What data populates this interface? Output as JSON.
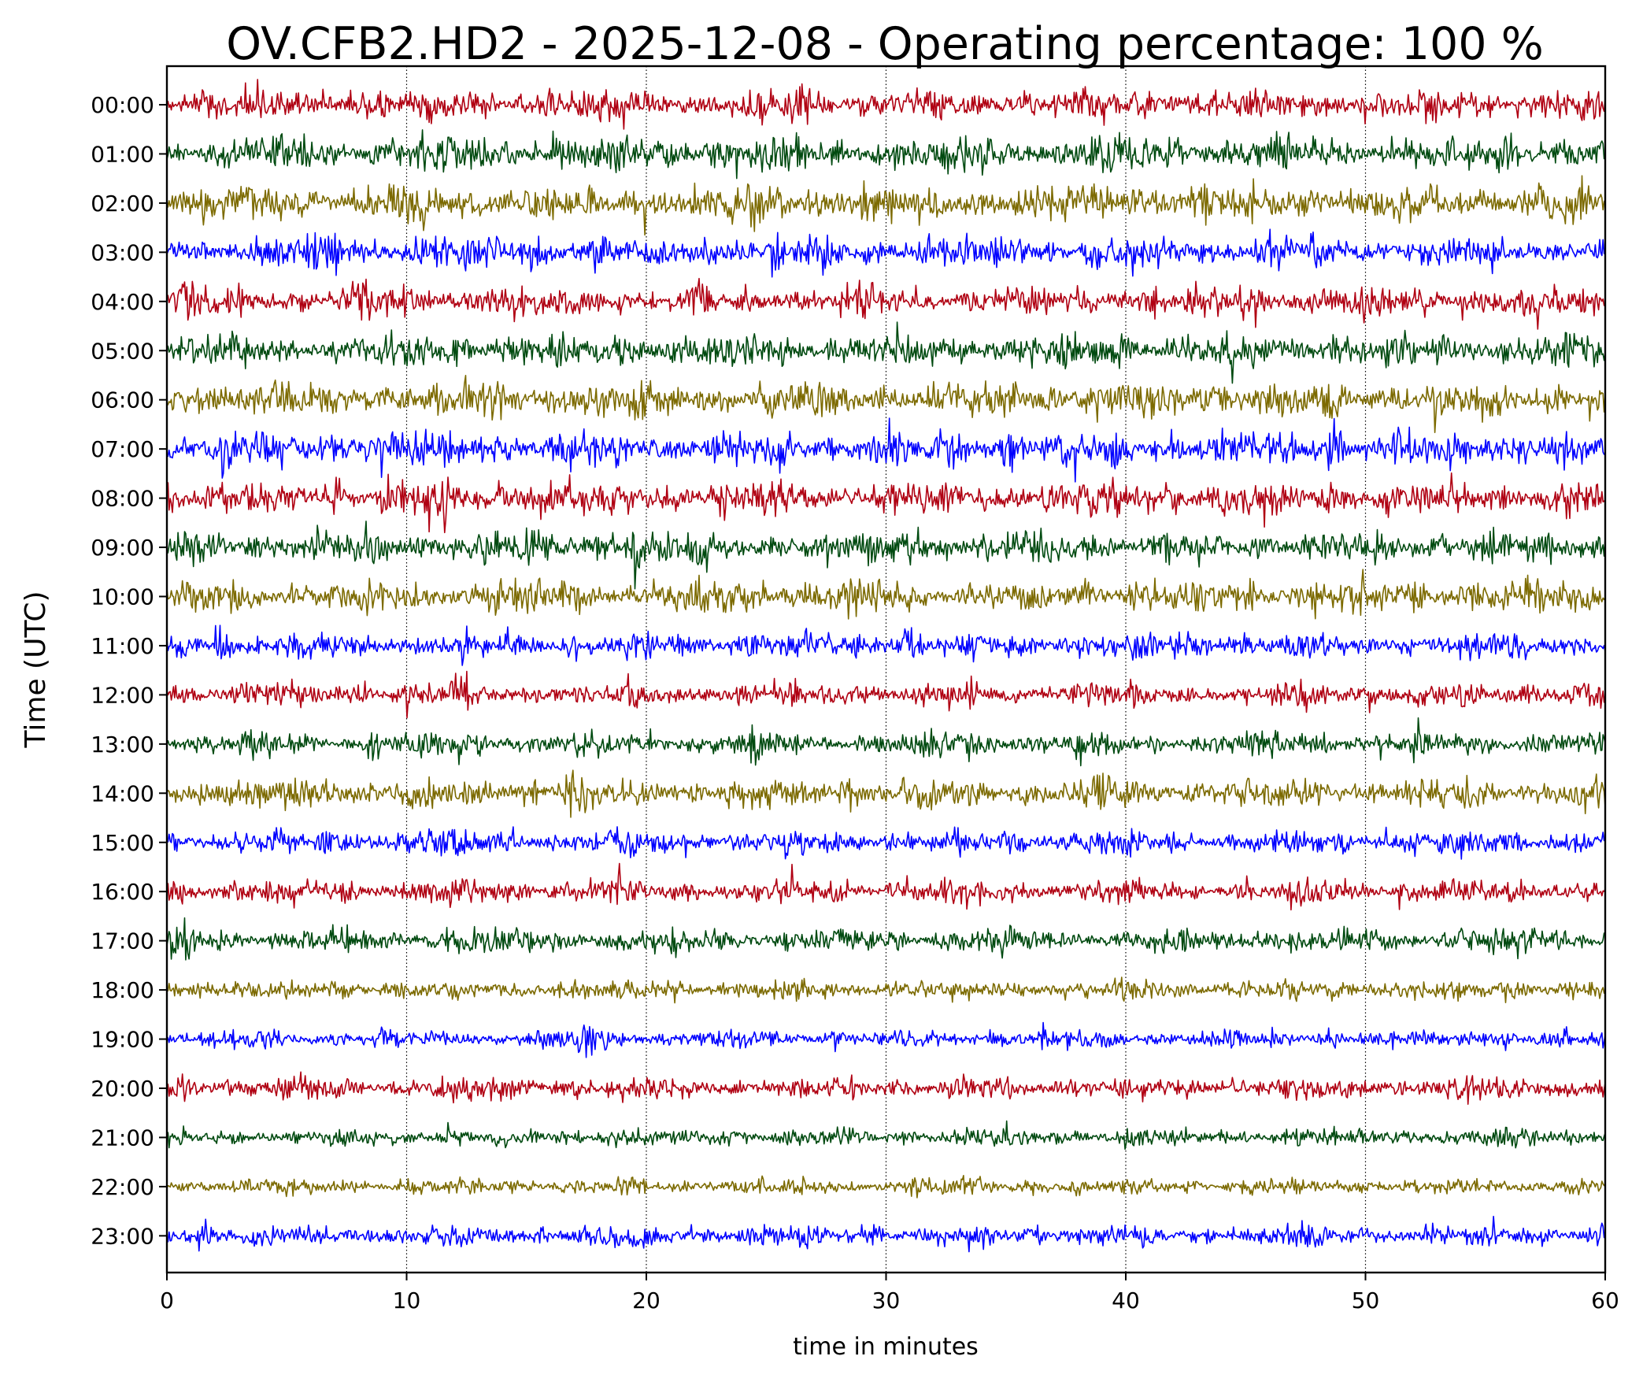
{
  "chart_data": {
    "type": "line",
    "title": "OV.CFB2.HD2 - 2025-12-08 - Operating percentage: 100 %",
    "xlabel": "time in minutes",
    "ylabel": "Time (UTC)",
    "xlim": [
      0,
      60
    ],
    "x_ticks": [
      "0",
      "10",
      "20",
      "30",
      "40",
      "50",
      "60"
    ],
    "vertical_grid": "dotted",
    "series_colors": [
      "#b00012",
      "#004a10",
      "#7c6a00",
      "#0000ff"
    ],
    "series": [
      {
        "label": "00:00",
        "color": "#b00012",
        "amplitude": 1.0,
        "events": [
          [
            26.5,
            1.5
          ],
          [
            12.8,
            1.1
          ],
          [
            3.6,
            1.1
          ]
        ]
      },
      {
        "label": "01:00",
        "color": "#004a10",
        "amplitude": 1.1,
        "events": [
          [
            5.8,
            1.2
          ],
          [
            13.5,
            1.2
          ],
          [
            22.8,
            1.2
          ],
          [
            55.9,
            1.1
          ]
        ]
      },
      {
        "label": "02:00",
        "color": "#7c6a00",
        "amplitude": 1.2,
        "events": [
          [
            10.0,
            1.3
          ],
          [
            19.6,
            1.2
          ],
          [
            23.0,
            1.2
          ],
          [
            39.5,
            1.1
          ]
        ]
      },
      {
        "label": "03:00",
        "color": "#0000ff",
        "amplitude": 1.0,
        "events": [
          [
            7.0,
            1.3
          ],
          [
            15.3,
            1.4
          ],
          [
            25.6,
            1.4
          ],
          [
            27.5,
            1.2
          ]
        ]
      },
      {
        "label": "04:00",
        "color": "#b00012",
        "amplitude": 0.9,
        "events": [
          [
            0.7,
            1.3
          ],
          [
            22.3,
            1.3
          ],
          [
            40.9,
            1.4
          ],
          [
            45.3,
            1.6
          ]
        ]
      },
      {
        "label": "05:00",
        "color": "#004a10",
        "amplitude": 1.0,
        "events": [
          [
            12.2,
            1.2
          ],
          [
            48.5,
            1.3
          ],
          [
            23.2,
            1.1
          ]
        ]
      },
      {
        "label": "06:00",
        "color": "#7c6a00",
        "amplitude": 1.1,
        "events": [
          [
            35.3,
            1.3
          ],
          [
            26.0,
            1.1
          ],
          [
            59.4,
            1.2
          ]
        ]
      },
      {
        "label": "07:00",
        "color": "#0000ff",
        "amplitude": 1.1,
        "events": [
          [
            35.2,
            1.7
          ],
          [
            48.7,
            1.7
          ],
          [
            16.8,
            1.3
          ],
          [
            56.6,
            1.2
          ]
        ]
      },
      {
        "label": "08:00",
        "color": "#b00012",
        "amplitude": 1.1,
        "events": [
          [
            7.2,
            1.2
          ],
          [
            9.5,
            1.2
          ],
          [
            38.8,
            1.1
          ]
        ]
      },
      {
        "label": "09:00",
        "color": "#004a10",
        "amplitude": 1.0,
        "events": [
          [
            31.0,
            1.8
          ],
          [
            19.5,
            1.3
          ],
          [
            41.2,
            1.2
          ]
        ]
      },
      {
        "label": "10:00",
        "color": "#7c6a00",
        "amplitude": 1.0,
        "events": [
          [
            13.7,
            1.2
          ],
          [
            28.6,
            1.2
          ],
          [
            47.8,
            1.2
          ],
          [
            2.0,
            1.1
          ]
        ]
      },
      {
        "label": "11:00",
        "color": "#0000ff",
        "amplitude": 0.8,
        "events": [
          [
            24.6,
            1.8
          ],
          [
            31.0,
            1.6
          ],
          [
            2.2,
            1.5
          ],
          [
            19.8,
            1.2
          ]
        ]
      },
      {
        "label": "12:00",
        "color": "#b00012",
        "amplitude": 0.75,
        "events": [
          [
            12.4,
            1.6
          ],
          [
            9.8,
            1.3
          ],
          [
            39.1,
            1.2
          ]
        ]
      },
      {
        "label": "13:00",
        "color": "#004a10",
        "amplitude": 0.75,
        "events": [
          [
            24.5,
            1.6
          ],
          [
            8.7,
            1.4
          ],
          [
            32.2,
            1.3
          ],
          [
            52.2,
            1.2
          ]
        ]
      },
      {
        "label": "14:00",
        "color": "#7c6a00",
        "amplitude": 0.9,
        "events": [
          [
            6.7,
            1.4
          ],
          [
            16.8,
            1.4
          ],
          [
            28.3,
            1.3
          ],
          [
            39.2,
            1.3
          ]
        ]
      },
      {
        "label": "15:00",
        "color": "#0000ff",
        "amplitude": 0.75,
        "events": [
          [
            7.0,
            1.2
          ],
          [
            11.0,
            1.2
          ],
          [
            28.0,
            1.3
          ],
          [
            48.5,
            1.2
          ]
        ]
      },
      {
        "label": "16:00",
        "color": "#b00012",
        "amplitude": 0.75,
        "events": [
          [
            0.5,
            1.3
          ],
          [
            5.0,
            1.1
          ],
          [
            13.0,
            1.2
          ],
          [
            56.3,
            1.1
          ]
        ]
      },
      {
        "label": "17:00",
        "color": "#004a10",
        "amplitude": 0.75,
        "events": [
          [
            0.7,
            1.4
          ],
          [
            12.8,
            1.4
          ],
          [
            56.8,
            1.2
          ]
        ]
      },
      {
        "label": "18:00",
        "color": "#7c6a00",
        "amplitude": 0.6,
        "events": [
          [
            1.7,
            1.3
          ],
          [
            48.7,
            1.2
          ],
          [
            55.6,
            1.1
          ]
        ]
      },
      {
        "label": "19:00",
        "color": "#0000ff",
        "amplitude": 0.55,
        "events": [
          [
            17.6,
            2.6
          ],
          [
            2.4,
            1.1
          ],
          [
            58.3,
            1.1
          ]
        ]
      },
      {
        "label": "20:00",
        "color": "#b00012",
        "amplitude": 0.7,
        "events": [
          [
            0.6,
            1.4
          ],
          [
            28.2,
            1.3
          ],
          [
            53.9,
            1.2
          ]
        ]
      },
      {
        "label": "21:00",
        "color": "#004a10",
        "amplitude": 0.55,
        "events": [
          [
            59.7,
            1.3
          ],
          [
            8.7,
            1.2
          ],
          [
            18.3,
            1.2
          ],
          [
            56.8,
            1.2
          ]
        ]
      },
      {
        "label": "22:00",
        "color": "#7c6a00",
        "amplitude": 0.5,
        "events": [
          [
            14.4,
            1.1
          ],
          [
            33.6,
            1.1
          ]
        ]
      },
      {
        "label": "23:00",
        "color": "#0000ff",
        "amplitude": 0.65,
        "events": [
          [
            1.7,
            2.3
          ],
          [
            29.6,
            1.3
          ],
          [
            47.9,
            1.2
          ],
          [
            9.3,
            1.1
          ]
        ]
      }
    ]
  }
}
